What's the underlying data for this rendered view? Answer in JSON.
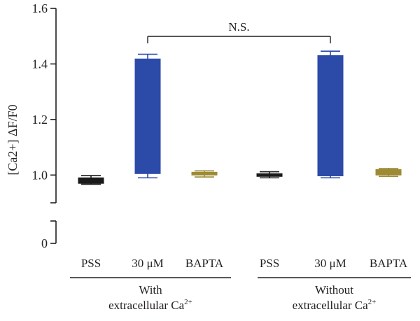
{
  "chart_data": {
    "type": "box",
    "ylabel": "[Ca2+] ΔF/F0",
    "ylim": [
      0,
      1.6
    ],
    "axis_break": [
      0.1,
      0.9
    ],
    "yticks": [
      0,
      1.0,
      1.2,
      1.4,
      1.6
    ],
    "ytick_labels": [
      "0",
      "1.0",
      "1.2",
      "1.4",
      "1.6"
    ],
    "categories": [
      "PSS",
      "30 μM",
      "BAPTA",
      "PSS",
      "30 μM",
      "BAPTA"
    ],
    "groups": [
      {
        "label": "With extracellular Ca2+",
        "categories": [
          0,
          1,
          2
        ]
      },
      {
        "label": "Without extracellular Ca2+",
        "categories": [
          3,
          4,
          5
        ]
      }
    ],
    "boxes": [
      {
        "category": "PSS",
        "group": "With",
        "min": 0.967,
        "q1": 0.97,
        "median": 0.98,
        "q3": 0.99,
        "max": 0.998,
        "color": "#1a1a1a"
      },
      {
        "category": "30 μM",
        "group": "With",
        "min": 0.99,
        "q1": 1.005,
        "median": 1.21,
        "q3": 1.418,
        "max": 1.435,
        "color": "#2c4aa8"
      },
      {
        "category": "BAPTA",
        "group": "With",
        "min": 0.993,
        "q1": 1.0,
        "median": 1.005,
        "q3": 1.01,
        "max": 1.015,
        "color": "#9e8a35"
      },
      {
        "category": "PSS",
        "group": "Without",
        "min": 0.99,
        "q1": 0.995,
        "median": 1.0,
        "q3": 1.005,
        "max": 1.012,
        "color": "#1a1a1a"
      },
      {
        "category": "30 μM",
        "group": "Without",
        "min": 0.99,
        "q1": 0.997,
        "median": 1.21,
        "q3": 1.43,
        "max": 1.446,
        "color": "#2c4aa8"
      },
      {
        "category": "BAPTA",
        "group": "Without",
        "min": 0.995,
        "q1": 1.0,
        "median": 1.01,
        "q3": 1.02,
        "max": 1.024,
        "color": "#9e8a35"
      }
    ],
    "annotation": {
      "text": "N.S.",
      "between": [
        "30 μM With",
        "30 μM Without"
      ]
    }
  }
}
